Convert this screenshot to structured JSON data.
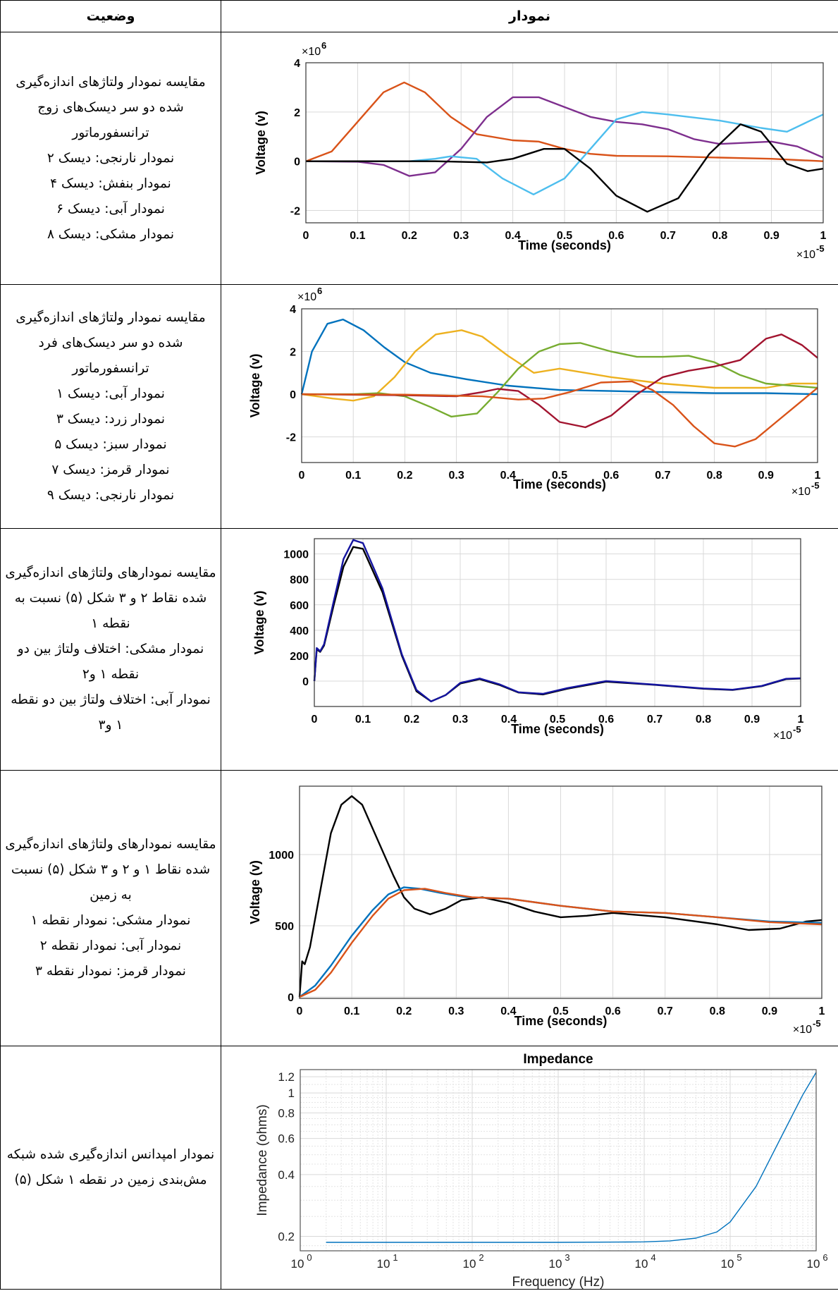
{
  "header": {
    "status_col": "وضعیت",
    "chart_col": "نمودار"
  },
  "rows": [
    {
      "status_lines": [
        "مقایسه نمودار ولتاژهای اندازه‌گیری",
        "شده دو سر دیسک‌های زوج",
        "ترانسفورماتور",
        "نمودار نارنجی: دیسک ۲",
        "نمودار بنفش: دیسک ۴",
        "نمودار آبی: دیسک ۶",
        "نمودار مشکی: دیسک ۸"
      ]
    },
    {
      "status_lines": [
        "مقایسه نمودار ولتاژهای اندازه‌گیری",
        "شده دو سر دیسک‌های فرد",
        "ترانسفورماتور",
        "نمودار آبی: دیسک ۱",
        "نمودار زرد: دیسک ۳",
        "نمودار سبز: دیسک ۵",
        "نمودار قرمز: دیسک ۷",
        "نمودار نارنجی: دیسک ۹"
      ]
    },
    {
      "status_lines": [
        "مقایسه نمودارهای ولتاژهای اندازه‌گیری",
        "شده نقاط ۲ و ۳ شکل (۵) نسبت به",
        "نقطه ۱",
        "نمودار مشکی: اختلاف ولتاژ بین دو",
        "نقطه ۱ و۲",
        "نمودار آبی: اختلاف ولتاژ بین دو نقطه",
        "۱ و۳"
      ]
    },
    {
      "status_lines": [
        "مقایسه نمودارهای ولتاژهای اندازه‌گیری",
        "شده نقاط ۱ و ۲ و ۳ شکل (۵) نسبت",
        "به زمین",
        "نمودار مشکی: نمودار نقطه ۱",
        "نمودار آبی: نمودار نقطه ۲",
        "نمودار قرمز: نمودار نقطه ۳"
      ]
    },
    {
      "status_lines": [
        "نمودار امپدانس اندازه‌گیری شده شبکه",
        "مش‌بندی زمین در نقطه ۱ شکل (۵)"
      ]
    }
  ],
  "chart_data": [
    {
      "type": "line",
      "xlabel": "Time (seconds)",
      "ylabel": "Voltage (v)",
      "x_multiplier": "×10",
      "x_exponent": "-5",
      "y_multiplier": "×10",
      "y_exponent": "6",
      "xlim": [
        0,
        1
      ],
      "ylim": [
        -2.5,
        4
      ],
      "grid": true,
      "xticks": [
        0,
        0.1,
        0.2,
        0.3,
        0.4,
        0.5,
        0.6,
        0.7,
        0.8,
        0.9,
        1
      ],
      "yticks": [
        -2,
        0,
        2,
        4
      ],
      "series": [
        {
          "color": "#d95319",
          "x": [
            0,
            0.05,
            0.1,
            0.15,
            0.19,
            0.23,
            0.28,
            0.33,
            0.4,
            0.45,
            0.5,
            0.55,
            0.6,
            0.7,
            0.8,
            0.9,
            0.95,
            1
          ],
          "y": [
            0,
            0.4,
            1.6,
            2.8,
            3.2,
            2.8,
            1.8,
            1.1,
            0.85,
            0.8,
            0.5,
            0.3,
            0.22,
            0.2,
            0.15,
            0.1,
            0.05,
            0
          ]
        },
        {
          "color": "#7e2f8e",
          "x": [
            0,
            0.1,
            0.15,
            0.2,
            0.25,
            0.3,
            0.35,
            0.4,
            0.45,
            0.5,
            0.55,
            0.6,
            0.65,
            0.7,
            0.75,
            0.8,
            0.9,
            0.95,
            1
          ],
          "y": [
            0,
            -0.02,
            -0.15,
            -0.6,
            -0.45,
            0.5,
            1.8,
            2.6,
            2.6,
            2.2,
            1.8,
            1.6,
            1.5,
            1.3,
            0.9,
            0.7,
            0.8,
            0.6,
            0.15
          ]
        },
        {
          "color": "#4dbeee",
          "x": [
            0,
            0.2,
            0.25,
            0.28,
            0.33,
            0.38,
            0.44,
            0.5,
            0.55,
            0.6,
            0.65,
            0.7,
            0.8,
            0.88,
            0.93,
            1
          ],
          "y": [
            0,
            0,
            0.1,
            0.2,
            0.1,
            -0.7,
            -1.35,
            -0.7,
            0.5,
            1.7,
            2.0,
            1.9,
            1.65,
            1.35,
            1.2,
            1.9
          ]
        },
        {
          "color": "#000000",
          "x": [
            0,
            0.25,
            0.35,
            0.4,
            0.46,
            0.5,
            0.55,
            0.6,
            0.66,
            0.72,
            0.78,
            0.84,
            0.88,
            0.93,
            0.97,
            1
          ],
          "y": [
            0,
            0,
            -0.05,
            0.1,
            0.5,
            0.5,
            -0.3,
            -1.4,
            -2.05,
            -1.5,
            0.3,
            1.5,
            1.2,
            -0.1,
            -0.4,
            -0.3
          ]
        }
      ]
    },
    {
      "type": "line",
      "xlabel": "Time (seconds)",
      "ylabel": "Voltage (v)",
      "x_multiplier": "×10",
      "x_exponent": "-5",
      "y_multiplier": "×10",
      "y_exponent": "6",
      "xlim": [
        0,
        1
      ],
      "ylim": [
        -3.2,
        4
      ],
      "grid": true,
      "xticks": [
        0,
        0.1,
        0.2,
        0.3,
        0.4,
        0.5,
        0.6,
        0.7,
        0.8,
        0.9,
        1
      ],
      "yticks": [
        -2,
        0,
        2,
        4
      ],
      "series": [
        {
          "color": "#0072bd",
          "x": [
            0,
            0.02,
            0.05,
            0.08,
            0.12,
            0.16,
            0.2,
            0.25,
            0.32,
            0.4,
            0.5,
            0.6,
            0.7,
            0.8,
            0.9,
            1
          ],
          "y": [
            0,
            2.0,
            3.3,
            3.5,
            3.0,
            2.2,
            1.5,
            1.0,
            0.7,
            0.4,
            0.2,
            0.15,
            0.1,
            0.05,
            0.05,
            0
          ]
        },
        {
          "color": "#edb120",
          "x": [
            0,
            0.06,
            0.1,
            0.14,
            0.18,
            0.22,
            0.26,
            0.31,
            0.35,
            0.4,
            0.45,
            0.5,
            0.55,
            0.6,
            0.7,
            0.8,
            0.9,
            0.95,
            1
          ],
          "y": [
            0,
            -0.2,
            -0.3,
            -0.1,
            0.8,
            2.0,
            2.8,
            3.0,
            2.7,
            1.8,
            1.0,
            1.2,
            1.0,
            0.8,
            0.5,
            0.3,
            0.3,
            0.5,
            0.5
          ]
        },
        {
          "color": "#77ac30",
          "x": [
            0,
            0.1,
            0.15,
            0.2,
            0.25,
            0.29,
            0.34,
            0.38,
            0.42,
            0.46,
            0.5,
            0.54,
            0.6,
            0.65,
            0.7,
            0.75,
            0.8,
            0.85,
            0.9,
            1
          ],
          "y": [
            0,
            0,
            0.05,
            -0.1,
            -0.6,
            -1.05,
            -0.9,
            0.1,
            1.2,
            2.0,
            2.35,
            2.4,
            2.0,
            1.75,
            1.75,
            1.8,
            1.5,
            0.9,
            0.5,
            0.3
          ]
        },
        {
          "color": "#a2142f",
          "x": [
            0,
            0.2,
            0.3,
            0.35,
            0.38,
            0.42,
            0.46,
            0.5,
            0.55,
            0.6,
            0.65,
            0.7,
            0.75,
            0.8,
            0.85,
            0.9,
            0.93,
            0.97,
            1
          ],
          "y": [
            0,
            -0.05,
            -0.1,
            0.1,
            0.25,
            0.15,
            -0.5,
            -1.3,
            -1.55,
            -1.0,
            0.0,
            0.8,
            1.1,
            1.3,
            1.6,
            2.6,
            2.8,
            2.3,
            1.7
          ]
        },
        {
          "color": "#d95319",
          "x": [
            0,
            0.2,
            0.35,
            0.42,
            0.47,
            0.52,
            0.58,
            0.64,
            0.68,
            0.72,
            0.76,
            0.8,
            0.84,
            0.88,
            0.92,
            0.96,
            1
          ],
          "y": [
            0,
            -0.02,
            -0.1,
            -0.25,
            -0.2,
            0.1,
            0.55,
            0.6,
            0.2,
            -0.5,
            -1.5,
            -2.3,
            -2.45,
            -2.1,
            -1.3,
            -0.5,
            0.3
          ]
        }
      ]
    },
    {
      "type": "line",
      "xlabel": "Time (seconds)",
      "ylabel": "Voltage (v)",
      "x_multiplier": "×10",
      "x_exponent": "-5",
      "xlim": [
        0,
        1
      ],
      "ylim": [
        -200,
        1120
      ],
      "grid": true,
      "xticks": [
        0,
        0.1,
        0.2,
        0.3,
        0.4,
        0.5,
        0.6,
        0.7,
        0.8,
        0.9,
        1
      ],
      "yticks": [
        0,
        200,
        400,
        600,
        800,
        1000
      ],
      "series": [
        {
          "color": "#000000",
          "x": [
            0,
            0.005,
            0.012,
            0.02,
            0.04,
            0.06,
            0.08,
            0.1,
            0.14,
            0.18,
            0.21,
            0.24,
            0.27,
            0.3,
            0.34,
            0.38,
            0.42,
            0.47,
            0.52,
            0.6,
            0.7,
            0.8,
            0.86,
            0.92,
            0.97,
            1
          ],
          "y": [
            0,
            250,
            230,
            280,
            600,
            900,
            1055,
            1040,
            700,
            200,
            -80,
            -160,
            -110,
            -20,
            15,
            -30,
            -90,
            -105,
            -60,
            -5,
            -30,
            -60,
            -70,
            -40,
            15,
            20
          ]
        },
        {
          "color": "#1414a0",
          "x": [
            0,
            0.005,
            0.012,
            0.02,
            0.04,
            0.06,
            0.08,
            0.1,
            0.14,
            0.18,
            0.21,
            0.24,
            0.27,
            0.3,
            0.34,
            0.38,
            0.42,
            0.47,
            0.52,
            0.6,
            0.7,
            0.8,
            0.86,
            0.92,
            0.97,
            1
          ],
          "y": [
            0,
            260,
            235,
            290,
            630,
            960,
            1110,
            1085,
            730,
            210,
            -70,
            -160,
            -110,
            -15,
            20,
            -25,
            -88,
            -100,
            -55,
            0,
            -28,
            -58,
            -68,
            -38,
            18,
            22
          ]
        }
      ]
    },
    {
      "type": "line",
      "xlabel": "Time (seconds)",
      "ylabel": "Voltage (v)",
      "x_multiplier": "×10",
      "x_exponent": "-5",
      "xlim": [
        0,
        1
      ],
      "ylim": [
        -10,
        1480
      ],
      "grid": true,
      "xticks": [
        0,
        0.1,
        0.2,
        0.3,
        0.4,
        0.5,
        0.6,
        0.7,
        0.8,
        0.9,
        1
      ],
      "yticks": [
        0,
        500,
        1000
      ],
      "series": [
        {
          "color": "#000000",
          "x": [
            0,
            0.005,
            0.01,
            0.02,
            0.04,
            0.06,
            0.08,
            0.1,
            0.12,
            0.15,
            0.18,
            0.2,
            0.22,
            0.25,
            0.28,
            0.31,
            0.35,
            0.4,
            0.45,
            0.5,
            0.55,
            0.6,
            0.7,
            0.8,
            0.86,
            0.92,
            0.97,
            1
          ],
          "y": [
            0,
            250,
            230,
            350,
            750,
            1150,
            1350,
            1410,
            1350,
            1100,
            850,
            700,
            620,
            580,
            620,
            680,
            700,
            660,
            600,
            560,
            570,
            590,
            560,
            510,
            470,
            480,
            530,
            540
          ]
        },
        {
          "color": "#0072bd",
          "x": [
            0,
            0.03,
            0.06,
            0.1,
            0.14,
            0.17,
            0.2,
            0.23,
            0.27,
            0.32,
            0.4,
            0.5,
            0.6,
            0.7,
            0.8,
            0.9,
            1
          ],
          "y": [
            0,
            80,
            220,
            430,
            610,
            720,
            770,
            760,
            730,
            700,
            690,
            640,
            600,
            590,
            560,
            530,
            520
          ]
        },
        {
          "color": "#d95319",
          "x": [
            0,
            0.03,
            0.06,
            0.1,
            0.14,
            0.17,
            0.2,
            0.24,
            0.28,
            0.33,
            0.4,
            0.5,
            0.6,
            0.7,
            0.8,
            0.9,
            1
          ],
          "y": [
            0,
            50,
            170,
            380,
            570,
            690,
            750,
            760,
            730,
            700,
            690,
            640,
            600,
            590,
            560,
            525,
            510
          ]
        }
      ]
    },
    {
      "type": "line",
      "title": "Impedance",
      "xlabel": "Frequency (Hz)",
      "ylabel": "Impedance (ohms)",
      "xscale": "log",
      "yscale": "log",
      "xlim": [
        1,
        1000000
      ],
      "ylim": [
        0.17,
        1.3
      ],
      "grid": true,
      "xticks": [
        1,
        10,
        100,
        1000,
        10000,
        100000,
        1000000
      ],
      "xtick_bases": [
        "10",
        "10",
        "10",
        "10",
        "10",
        "10",
        "10"
      ],
      "xtick_exps": [
        "0",
        "1",
        "2",
        "3",
        "4",
        "5",
        "6"
      ],
      "yticks": [
        0.2,
        0.4,
        0.6,
        0.8,
        1,
        1.2
      ],
      "series": [
        {
          "color": "#0072bd",
          "x": [
            2,
            10,
            100,
            1000,
            5000,
            10000,
            20000,
            40000,
            70000,
            100000,
            200000,
            400000,
            700000,
            1000000
          ],
          "y": [
            0.187,
            0.187,
            0.187,
            0.187,
            0.1875,
            0.188,
            0.19,
            0.196,
            0.21,
            0.235,
            0.35,
            0.62,
            0.98,
            1.26
          ]
        }
      ]
    }
  ]
}
